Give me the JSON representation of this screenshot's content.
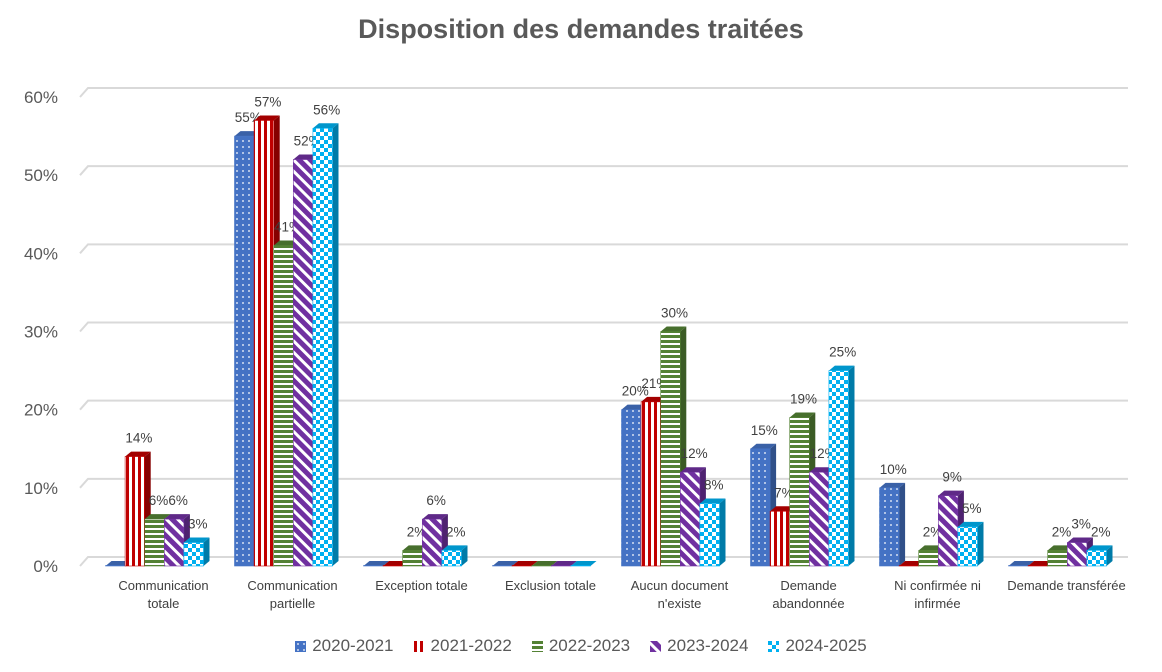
{
  "chart_data": {
    "type": "bar",
    "title": "Disposition des demandes traitées",
    "xlabel": "",
    "ylabel": "",
    "ylim": [
      0,
      60
    ],
    "yticks": [
      "0%",
      "10%",
      "20%",
      "30%",
      "40%",
      "50%",
      "60%"
    ],
    "grid": true,
    "legend_placement": "bottom",
    "categories": [
      [
        "Communication",
        "totale"
      ],
      [
        "Communication",
        "partielle"
      ],
      [
        "Exception totale"
      ],
      [
        "Exclusion totale"
      ],
      [
        "Aucun document",
        "n'existe"
      ],
      [
        "Demande",
        "abandonnée"
      ],
      [
        "Ni confirmée ni",
        "infirmée"
      ],
      [
        "Demande transférée"
      ]
    ],
    "series": [
      {
        "name": "2020-2021",
        "color": "#4472C4",
        "values": [
          0,
          55,
          0,
          0,
          20,
          15,
          10,
          0
        ]
      },
      {
        "name": "2021-2022",
        "color": "#C00000",
        "values": [
          14,
          57,
          0,
          0,
          21,
          7,
          0,
          0
        ]
      },
      {
        "name": "2022-2023",
        "color": "#548235",
        "values": [
          6,
          41,
          2,
          0,
          30,
          19,
          2,
          2
        ]
      },
      {
        "name": "2023-2024",
        "color": "#7030A0",
        "values": [
          6,
          52,
          6,
          0,
          12,
          12,
          9,
          3
        ]
      },
      {
        "name": "2024-2025",
        "color": "#00B0F0",
        "values": [
          3,
          56,
          2,
          0,
          8,
          25,
          5,
          2
        ]
      }
    ]
  }
}
